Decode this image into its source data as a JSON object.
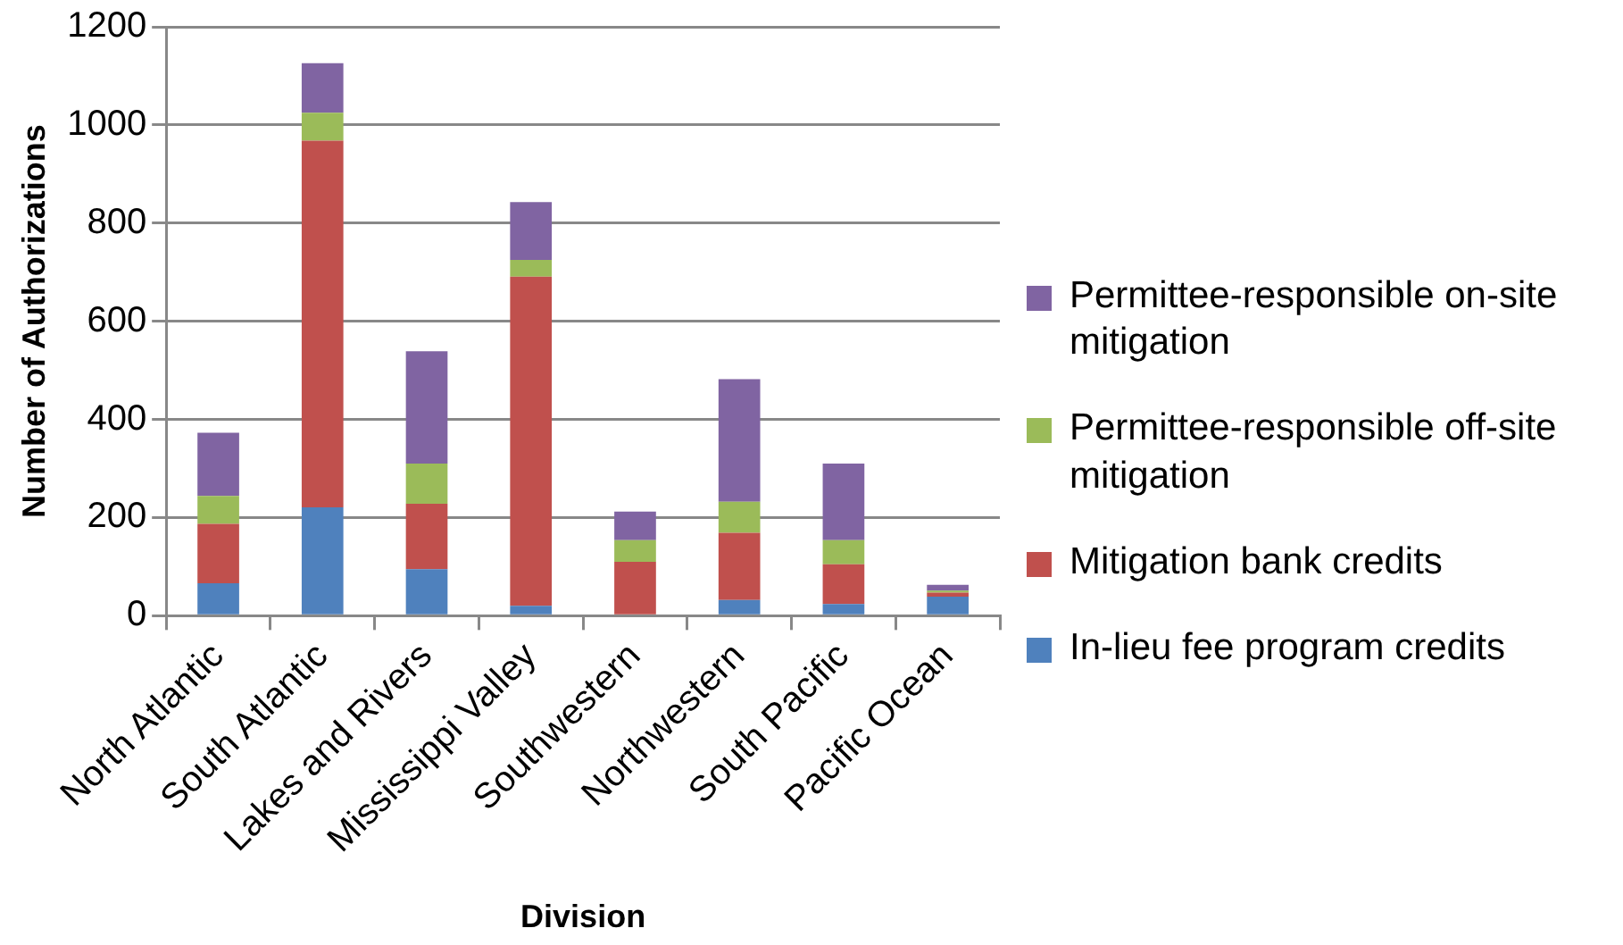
{
  "chart_data": {
    "type": "bar",
    "xlabel": "Division",
    "ylabel": "Number of Authorizations",
    "categories": [
      "North Atlantic",
      "South Atlantic",
      "Lakes and Rivers",
      "Mississippi Valley",
      "Southwestern",
      "Northwestern",
      "South Pacific",
      "Pacific Ocean"
    ],
    "stacked": true,
    "ylim": [
      0,
      1200
    ],
    "yticks": [
      0,
      200,
      400,
      600,
      800,
      1000,
      1200
    ],
    "grid": "y",
    "legend": "right",
    "series": [
      {
        "name": "In-lieu fee program credits",
        "color": "#4f81bd",
        "values": [
          66,
          221,
          95,
          20,
          3,
          32,
          24,
          39
        ]
      },
      {
        "name": "Mitigation bank credits",
        "color": "#c0504d",
        "values": [
          121,
          747,
          133,
          671,
          107,
          137,
          81,
          8
        ]
      },
      {
        "name": "Permittee-responsible off-site mitigation",
        "color": "#9bbb59",
        "values": [
          57,
          57,
          82,
          34,
          44,
          63,
          49,
          4
        ]
      },
      {
        "name": "Permittee-responsible on-site mitigation",
        "color": "#8064a2",
        "values": [
          129,
          101,
          229,
          118,
          58,
          250,
          156,
          12
        ]
      }
    ]
  }
}
